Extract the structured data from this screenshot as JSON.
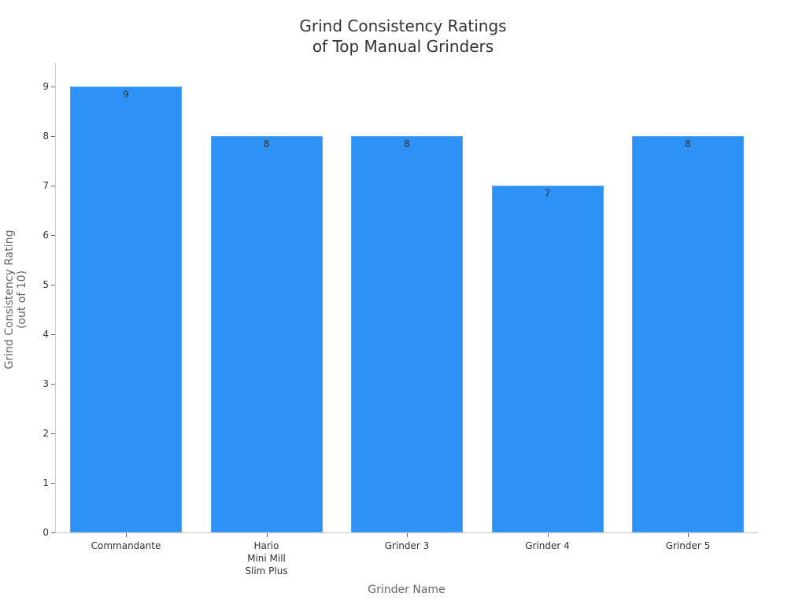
{
  "chart_data": {
    "type": "bar",
    "title": "Grind Consistency Ratings of Top Manual Grinders",
    "title_lines": [
      "Grind Consistency Ratings",
      "of Top Manual Grinders"
    ],
    "xlabel": "Grinder Name",
    "ylabel": "Grind Consistency Rating (out of 10)",
    "ylabel_lines": [
      "Grind Consistency Rating",
      "(out of 10)"
    ],
    "categories": [
      "Commandante",
      "Hario\nMini Mill\nSlim Plus",
      "Grinder 3",
      "Grinder 4",
      "Grinder 5"
    ],
    "values": [
      9,
      8,
      8,
      7,
      8
    ],
    "data_labels": [
      "9",
      "8",
      "8",
      "7",
      "8"
    ],
    "yticks": [
      "0",
      "1",
      "2",
      "3",
      "4",
      "5",
      "6",
      "7",
      "8",
      "9"
    ],
    "ylim": [
      0,
      9.5
    ],
    "grid": false,
    "legend": null,
    "bar_color": "#2e91f6"
  }
}
